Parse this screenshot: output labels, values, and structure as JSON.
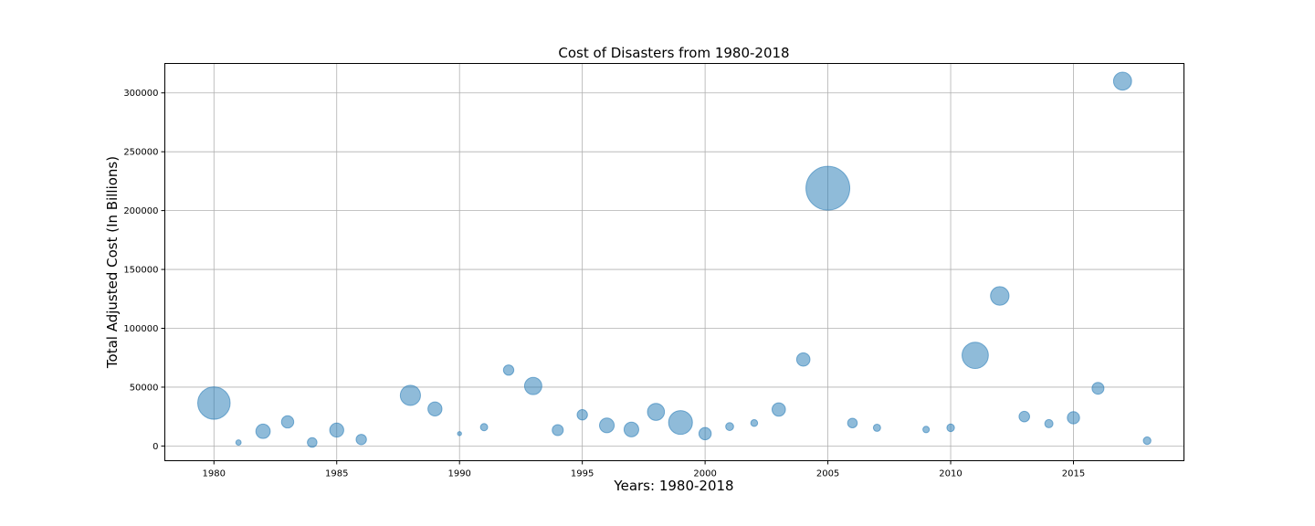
{
  "chart_data": {
    "type": "scatter",
    "title": "Cost of Disasters from 1980-2018",
    "xlabel": "Years: 1980-2018",
    "ylabel": "Total Adjusted Cost (In Billions)",
    "xlim": [
      1978,
      2019.5
    ],
    "ylim": [
      -12500,
      325000
    ],
    "x_ticks": [
      1980,
      1985,
      1990,
      1995,
      2000,
      2005,
      2010,
      2015
    ],
    "y_ticks": [
      0,
      50000,
      100000,
      150000,
      200000,
      250000,
      300000
    ],
    "grid": true,
    "marker_color": "#1f77b4",
    "marker_alpha": 0.5,
    "size_note": "bubble size varies per year",
    "points": [
      {
        "x": 1980,
        "y": 36500,
        "s": 1150
      },
      {
        "x": 1981,
        "y": 3000,
        "s": 18
      },
      {
        "x": 1982,
        "y": 12500,
        "s": 200
      },
      {
        "x": 1983,
        "y": 20500,
        "s": 140
      },
      {
        "x": 1984,
        "y": 3000,
        "s": 80
      },
      {
        "x": 1985,
        "y": 13500,
        "s": 190
      },
      {
        "x": 1986,
        "y": 5500,
        "s": 95
      },
      {
        "x": 1988,
        "y": 43000,
        "s": 420
      },
      {
        "x": 1989,
        "y": 31500,
        "s": 190
      },
      {
        "x": 1990,
        "y": 10500,
        "s": 8
      },
      {
        "x": 1991,
        "y": 16000,
        "s": 40
      },
      {
        "x": 1992,
        "y": 64500,
        "s": 95
      },
      {
        "x": 1993,
        "y": 51000,
        "s": 300
      },
      {
        "x": 1994,
        "y": 13500,
        "s": 110
      },
      {
        "x": 1995,
        "y": 26500,
        "s": 95
      },
      {
        "x": 1996,
        "y": 17500,
        "s": 210
      },
      {
        "x": 1997,
        "y": 14000,
        "s": 210
      },
      {
        "x": 1998,
        "y": 29000,
        "s": 290
      },
      {
        "x": 1999,
        "y": 20000,
        "s": 600
      },
      {
        "x": 2000,
        "y": 10500,
        "s": 140
      },
      {
        "x": 2001,
        "y": 16500,
        "s": 50
      },
      {
        "x": 2002,
        "y": 19500,
        "s": 35
      },
      {
        "x": 2003,
        "y": 31000,
        "s": 170
      },
      {
        "x": 2004,
        "y": 73500,
        "s": 170
      },
      {
        "x": 2005,
        "y": 219000,
        "s": 2150
      },
      {
        "x": 2006,
        "y": 19500,
        "s": 80
      },
      {
        "x": 2007,
        "y": 15500,
        "s": 40
      },
      {
        "x": 2009,
        "y": 14000,
        "s": 30
      },
      {
        "x": 2010,
        "y": 15500,
        "s": 45
      },
      {
        "x": 2011,
        "y": 77000,
        "s": 740
      },
      {
        "x": 2012,
        "y": 127500,
        "s": 350
      },
      {
        "x": 2013,
        "y": 25000,
        "s": 100
      },
      {
        "x": 2014,
        "y": 19000,
        "s": 55
      },
      {
        "x": 2015,
        "y": 24000,
        "s": 140
      },
      {
        "x": 2016,
        "y": 49000,
        "s": 130
      },
      {
        "x": 2017,
        "y": 310000,
        "s": 330
      },
      {
        "x": 2018,
        "y": 4500,
        "s": 45
      }
    ]
  }
}
